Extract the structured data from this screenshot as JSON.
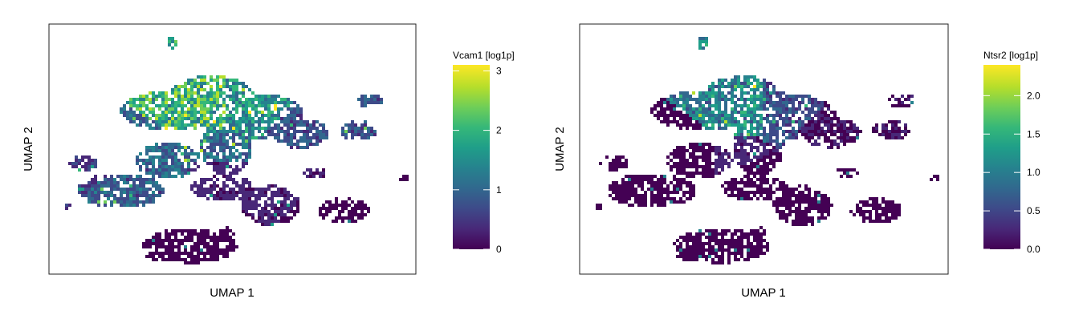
{
  "chart_data": [
    {
      "type": "heatmap",
      "subtype": "hexbin-umap",
      "xlabel": "UMAP 1",
      "ylabel": "UMAP 2",
      "axis_ticks": false,
      "grid": false,
      "legend": {
        "title": "Vcam1 [log1p]",
        "placement": "right",
        "range": [
          0,
          3.1
        ],
        "ticks": [
          0,
          1,
          2,
          3
        ],
        "tick_labels": [
          "0",
          "1",
          "2",
          "3"
        ]
      },
      "colormap": [
        "#440154",
        "#482878",
        "#3e4a89",
        "#31688e",
        "#26828e",
        "#1f9e89",
        "#35b779",
        "#6ece58",
        "#b5de2b",
        "#fde725"
      ],
      "clusters": [
        {
          "x": 0.4,
          "y": 0.62,
          "level": 0.7
        },
        {
          "x": 0.55,
          "y": 0.62,
          "level": 0.55
        },
        {
          "x": 0.48,
          "y": 0.52,
          "level": 0.4
        },
        {
          "x": 0.3,
          "y": 0.5,
          "level": 0.4
        },
        {
          "x": 0.2,
          "y": 0.4,
          "level": 0.35
        },
        {
          "x": 0.1,
          "y": 0.45,
          "level": 0.2
        },
        {
          "x": 0.48,
          "y": 0.4,
          "level": 0.15
        },
        {
          "x": 0.62,
          "y": 0.38,
          "level": 0.15
        },
        {
          "x": 0.4,
          "y": 0.18,
          "level": 0.08
        },
        {
          "x": 0.78,
          "y": 0.28,
          "level": 0.05
        },
        {
          "x": 0.65,
          "y": 0.56,
          "level": 0.3
        }
      ]
    },
    {
      "type": "heatmap",
      "subtype": "hexbin-umap",
      "xlabel": "UMAP 1",
      "ylabel": "UMAP 2",
      "axis_ticks": false,
      "grid": false,
      "legend": {
        "title": "Ntsr2 [log1p]",
        "placement": "right",
        "range": [
          0,
          2.4
        ],
        "ticks": [
          0,
          0.5,
          1,
          1.5,
          2
        ],
        "tick_labels": [
          "0.0",
          "0.5",
          "1.0",
          "1.5",
          "2.0"
        ]
      },
      "colormap": [
        "#440154",
        "#482878",
        "#3e4a89",
        "#31688e",
        "#26828e",
        "#1f9e89",
        "#35b779",
        "#6ece58",
        "#b5de2b",
        "#fde725"
      ],
      "clusters": [
        {
          "x": 0.43,
          "y": 0.62,
          "level": 0.5
        },
        {
          "x": 0.55,
          "y": 0.62,
          "level": 0.3
        },
        {
          "x": 0.42,
          "y": 0.5,
          "level": 0.15
        },
        {
          "x": 0.3,
          "y": 0.5,
          "level": 0.08
        },
        {
          "x": 0.2,
          "y": 0.4,
          "level": 0.05
        },
        {
          "x": 0.1,
          "y": 0.45,
          "level": 0.05
        },
        {
          "x": 0.48,
          "y": 0.4,
          "level": 0.05
        },
        {
          "x": 0.62,
          "y": 0.38,
          "level": 0.05
        },
        {
          "x": 0.4,
          "y": 0.18,
          "level": 0.05
        },
        {
          "x": 0.78,
          "y": 0.28,
          "level": 0.03
        },
        {
          "x": 0.65,
          "y": 0.56,
          "level": 0.1
        }
      ]
    }
  ]
}
